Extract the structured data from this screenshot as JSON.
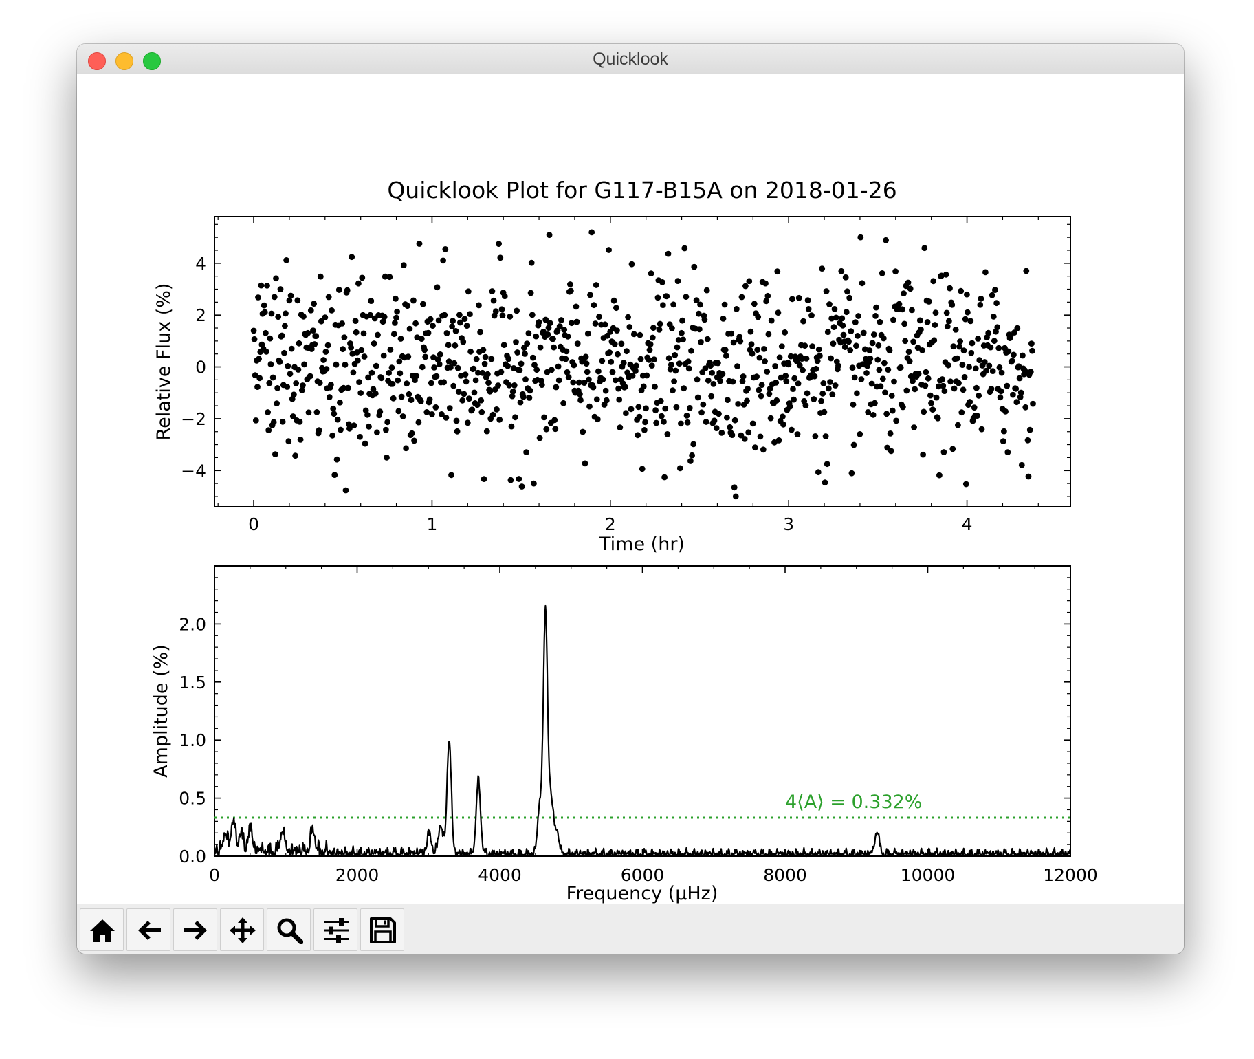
{
  "window": {
    "title": "Quicklook"
  },
  "toolbar": {
    "buttons": [
      {
        "name": "home-button",
        "icon": "home-icon"
      },
      {
        "name": "back-button",
        "icon": "arrow-left-icon"
      },
      {
        "name": "forward-button",
        "icon": "arrow-right-icon"
      },
      {
        "name": "pan-button",
        "icon": "move-arrows-icon"
      },
      {
        "name": "zoom-button",
        "icon": "magnifier-icon"
      },
      {
        "name": "configure-subplots-button",
        "icon": "sliders-icon"
      },
      {
        "name": "save-button",
        "icon": "floppy-disk-icon"
      }
    ]
  },
  "chart_data": [
    {
      "type": "scatter",
      "title": "Quicklook Plot for G117-B15A on 2018-01-26",
      "xlabel": "Time (hr)",
      "ylabel": "Relative Flux (%)",
      "xlim": [
        -0.22,
        4.58
      ],
      "ylim": [
        -5.4,
        5.8
      ],
      "xticks": [
        "0",
        "1",
        "2",
        "3",
        "4"
      ],
      "yticks": [
        "−4",
        "−2",
        "0",
        "2",
        "4"
      ],
      "point_color": "#000000",
      "n_points": 1050,
      "time_range": [
        0.0,
        4.37
      ],
      "flux_stddev": 1.75,
      "flux_extrema": {
        "min": -5.0,
        "max": 5.4
      },
      "grid": false
    },
    {
      "type": "line",
      "xlabel": "Frequency (μHz)",
      "ylabel": "Amplitude (%)",
      "xlim": [
        0,
        12000
      ],
      "ylim": [
        0,
        2.5
      ],
      "xticks": [
        "0",
        "2000",
        "4000",
        "6000",
        "8000",
        "10000",
        "12000"
      ],
      "yticks": [
        "0.0",
        "0.5",
        "1.0",
        "1.5",
        "2.0"
      ],
      "peaks": [
        {
          "x": 4640,
          "y": 2.08
        },
        {
          "x": 3290,
          "y": 0.97
        },
        {
          "x": 3700,
          "y": 0.63
        },
        {
          "x": 4560,
          "y": 0.4
        },
        {
          "x": 4720,
          "y": 0.47
        },
        {
          "x": 4800,
          "y": 0.2
        },
        {
          "x": 9290,
          "y": 0.19
        },
        {
          "x": 260,
          "y": 0.27
        },
        {
          "x": 150,
          "y": 0.15
        },
        {
          "x": 370,
          "y": 0.17
        },
        {
          "x": 500,
          "y": 0.2
        },
        {
          "x": 950,
          "y": 0.18
        },
        {
          "x": 1380,
          "y": 0.19
        },
        {
          "x": 3170,
          "y": 0.25
        },
        {
          "x": 3010,
          "y": 0.17
        }
      ],
      "noise_level_high_freq": 0.06,
      "threshold": {
        "value": 0.332,
        "label": "4⟨A⟩ = 0.332%",
        "color": "#2ca02c",
        "style": "dotted"
      },
      "line_color": "#000000",
      "grid": false
    }
  ]
}
